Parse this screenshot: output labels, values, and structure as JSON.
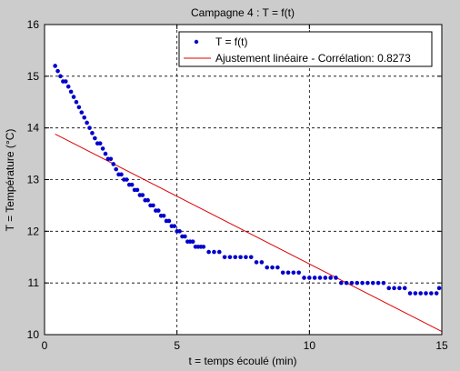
{
  "colors": {
    "figure_bg": "#cccccc",
    "axes_bg": "#ffffff",
    "series_points": "#0000cc",
    "fit_line": "#dd0000",
    "grid": "#000000"
  },
  "chart_data": {
    "type": "scatter",
    "title": "Campagne 4 : T = f(t)",
    "xlabel": "t = temps écoulé (min)",
    "ylabel": "T = Température (°C)",
    "xlim": [
      0,
      15
    ],
    "ylim": [
      10,
      16
    ],
    "xticks": [
      "0",
      "5",
      "10",
      "15"
    ],
    "yticks": [
      "10",
      "11",
      "12",
      "13",
      "14",
      "15",
      "16"
    ],
    "grid": true,
    "legend_position": "top-right",
    "legend": [
      {
        "label": "T = f(t)",
        "marker": "dot"
      },
      {
        "label": "Ajustement linéaire - Corrélation: 0.8273",
        "marker": "line"
      }
    ],
    "series": [
      {
        "name": "T = f(t)",
        "style": "points",
        "x": [
          0.4,
          0.5,
          0.6,
          0.7,
          0.8,
          0.9,
          1.0,
          1.1,
          1.2,
          1.3,
          1.4,
          1.5,
          1.6,
          1.7,
          1.8,
          1.9,
          2.0,
          2.1,
          2.2,
          2.3,
          2.4,
          2.5,
          2.6,
          2.7,
          2.8,
          2.9,
          3.0,
          3.1,
          3.2,
          3.3,
          3.4,
          3.5,
          3.6,
          3.7,
          3.8,
          3.9,
          4.0,
          4.1,
          4.2,
          4.3,
          4.4,
          4.5,
          4.6,
          4.7,
          4.8,
          4.9,
          5.0,
          5.1,
          5.2,
          5.3,
          5.4,
          5.5,
          5.6,
          5.7,
          5.8,
          5.9,
          6.0,
          6.2,
          6.4,
          6.6,
          6.8,
          7.0,
          7.2,
          7.4,
          7.6,
          7.8,
          8.0,
          8.2,
          8.4,
          8.6,
          8.8,
          9.0,
          9.2,
          9.4,
          9.6,
          9.8,
          10.0,
          10.2,
          10.4,
          10.6,
          10.8,
          11.0,
          11.2,
          11.4,
          11.6,
          11.8,
          12.0,
          12.2,
          12.4,
          12.6,
          12.8,
          13.0,
          13.2,
          13.4,
          13.6,
          13.8,
          14.0,
          14.2,
          14.4,
          14.6,
          14.8,
          14.9
        ],
        "y": [
          15.2,
          15.1,
          15.0,
          14.9,
          14.9,
          14.8,
          14.7,
          14.6,
          14.5,
          14.4,
          14.3,
          14.2,
          14.1,
          14.0,
          13.9,
          13.8,
          13.7,
          13.7,
          13.6,
          13.5,
          13.4,
          13.4,
          13.3,
          13.2,
          13.1,
          13.1,
          13.0,
          13.0,
          12.9,
          12.9,
          12.8,
          12.8,
          12.7,
          12.7,
          12.6,
          12.6,
          12.5,
          12.5,
          12.4,
          12.4,
          12.3,
          12.3,
          12.2,
          12.2,
          12.1,
          12.1,
          12.0,
          12.0,
          11.9,
          11.9,
          11.8,
          11.8,
          11.8,
          11.7,
          11.7,
          11.7,
          11.7,
          11.6,
          11.6,
          11.6,
          11.5,
          11.5,
          11.5,
          11.5,
          11.5,
          11.5,
          11.4,
          11.4,
          11.3,
          11.3,
          11.3,
          11.2,
          11.2,
          11.2,
          11.2,
          11.1,
          11.1,
          11.1,
          11.1,
          11.1,
          11.1,
          11.1,
          11.0,
          11.0,
          11.0,
          11.0,
          11.0,
          11.0,
          11.0,
          11.0,
          11.0,
          10.9,
          10.9,
          10.9,
          10.9,
          10.8,
          10.8,
          10.8,
          10.8,
          10.8,
          10.8,
          10.9
        ]
      },
      {
        "name": "Ajustement linéaire - Corrélation: 0.8273",
        "style": "line",
        "x": [
          0.4,
          15.0
        ],
        "y": [
          13.88,
          10.06
        ]
      }
    ]
  }
}
